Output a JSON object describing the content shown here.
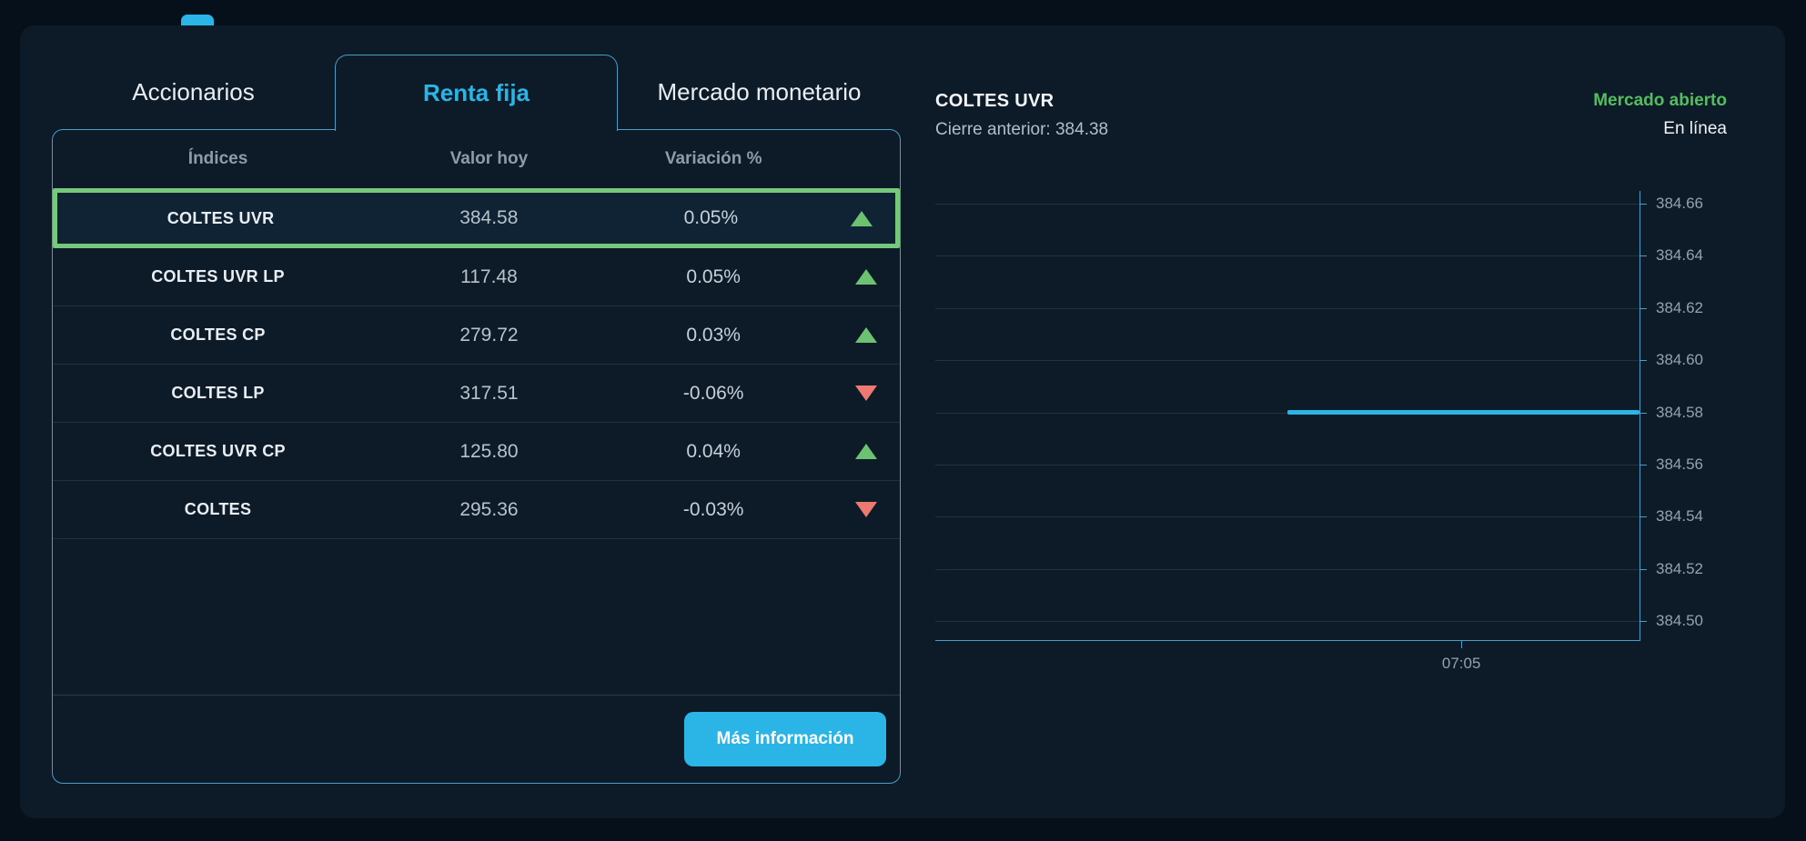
{
  "tabs": [
    {
      "label": "Accionarios",
      "active": false
    },
    {
      "label": "Renta fija",
      "active": true
    },
    {
      "label": "Mercado monetario",
      "active": false
    }
  ],
  "table": {
    "headers": [
      "Índices",
      "Valor hoy",
      "Variación %"
    ],
    "rows": [
      {
        "name": "COLTES UVR",
        "value": "384.58",
        "variation": "0.05%",
        "direction": "up",
        "highlighted": true
      },
      {
        "name": "COLTES UVR LP",
        "value": "117.48",
        "variation": "0.05%",
        "direction": "up",
        "highlighted": false
      },
      {
        "name": "COLTES CP",
        "value": "279.72",
        "variation": "0.03%",
        "direction": "up",
        "highlighted": false
      },
      {
        "name": "COLTES LP",
        "value": "317.51",
        "variation": "-0.06%",
        "direction": "down",
        "highlighted": false
      },
      {
        "name": "COLTES UVR CP",
        "value": "125.80",
        "variation": "0.04%",
        "direction": "up",
        "highlighted": false
      },
      {
        "name": "COLTES",
        "value": "295.36",
        "variation": "-0.03%",
        "direction": "down",
        "highlighted": false
      }
    ],
    "more_info_label": "Más información"
  },
  "detail": {
    "title": "COLTES UVR",
    "previous_close_text": "Cierre anterior: 384.38",
    "previous_close_value": 384.38,
    "market_status": "Mercado abierto",
    "connection_status": "En línea"
  },
  "chart_data": {
    "type": "line",
    "title": "COLTES UVR",
    "xlabel": "",
    "ylabel": "",
    "y_ticks": [
      384.66,
      384.64,
      384.62,
      384.6,
      384.58,
      384.56,
      384.54,
      384.52,
      384.5
    ],
    "y_tick_labels": [
      "384.66",
      "384.64",
      "384.62",
      "384.60",
      "384.58",
      "384.56",
      "384.54",
      "384.52",
      "384.50"
    ],
    "ylim": [
      384.4927,
      384.6649
    ],
    "x_ticks": [
      {
        "label": "07:05",
        "fraction": 0.747
      }
    ],
    "grid": true,
    "axis_side": "right",
    "series": [
      {
        "name": "COLTES UVR",
        "value": 384.58,
        "x_start_fraction": 0.5,
        "x_end_fraction": 1.0
      }
    ],
    "line_color": "#2ab5e6"
  },
  "colors": {
    "accent_cyan": "#2ab5e6",
    "highlight_green": "#76c87c",
    "up_green": "#6cc271",
    "down_red": "#ed7a72",
    "status_green": "#54bd60",
    "panel_border": "#4c9cc6",
    "card_bg": "#0d1b29",
    "page_bg": "#06101a"
  }
}
